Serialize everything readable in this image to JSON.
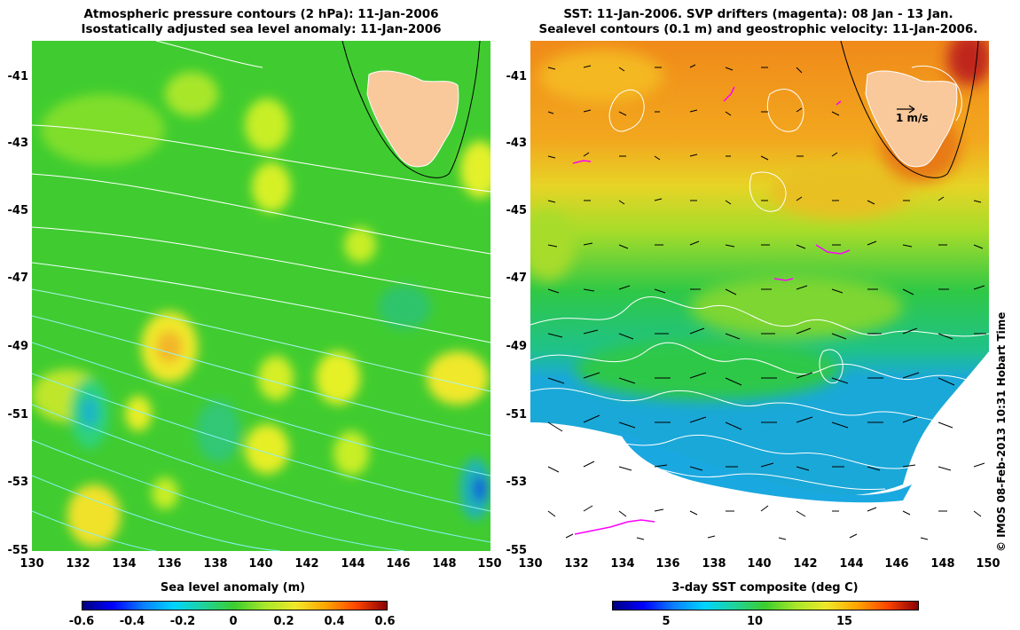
{
  "left_panel": {
    "title_line1": "Atmospheric pressure contours (2 hPa): 11-Jan-2006",
    "title_line2": "Isostatically adjusted sea level anomaly: 11-Jan-2006",
    "colorbar_title": "Sea level anomaly (m)",
    "colorbar_ticks": [
      "-0.6",
      "-0.4",
      "-0.2",
      "0",
      "0.2",
      "0.4",
      "0.6"
    ]
  },
  "right_panel": {
    "title_line1": "SST: 11-Jan-2006. SVP drifters (magenta): 08 Jan - 13 Jan.",
    "title_line2": "Sealevel contours (0.1 m) and geostrophic velocity: 11-Jan-2006.",
    "colorbar_title": "3-day SST composite (deg C)",
    "colorbar_ticks": [
      "5",
      "10",
      "15"
    ],
    "velocity_scale_label": "1 m/s"
  },
  "axes": {
    "y_ticks": [
      "-41",
      "-43",
      "-45",
      "-47",
      "-49",
      "-51",
      "-53",
      "-55"
    ],
    "x_ticks": [
      "130",
      "132",
      "134",
      "136",
      "138",
      "140",
      "142",
      "144",
      "146",
      "148",
      "150"
    ]
  },
  "copyright": "© IMOS 08-Feb-2013 10:31 Hobart Time",
  "colors": {
    "land": "#f9c89b",
    "sla_background": "#3ccd2e",
    "drifter": "#ff00ff"
  }
}
